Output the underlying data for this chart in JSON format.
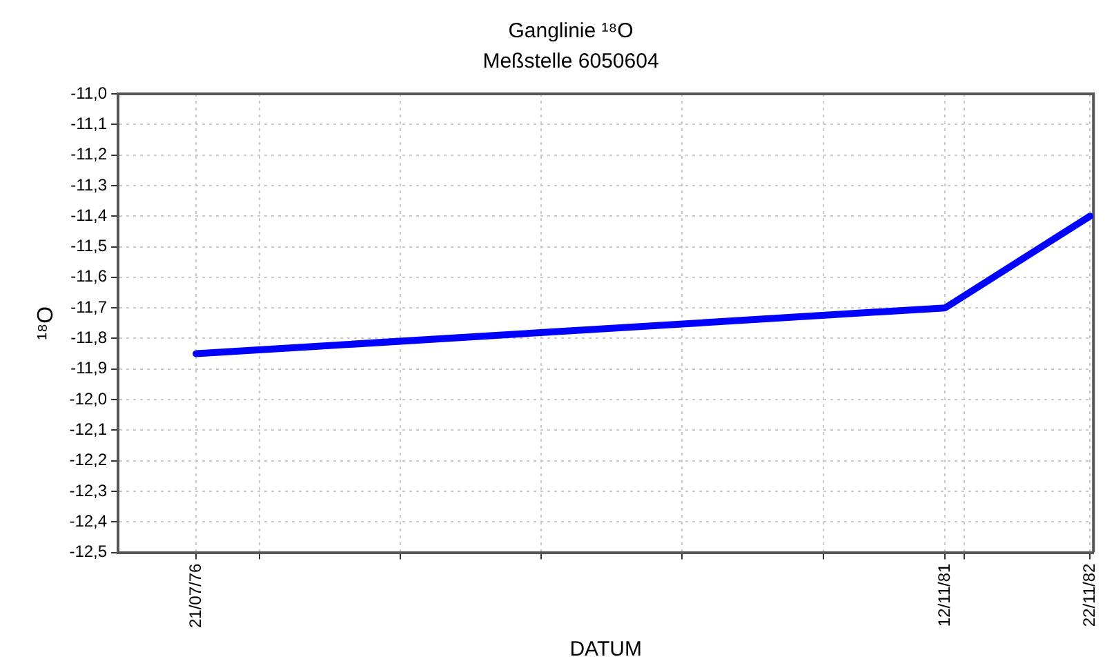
{
  "chart_data": {
    "type": "line",
    "title": "Ganglinie ¹⁸O",
    "subtitle": "Meßstelle 6050604",
    "xlabel": "DATUM",
    "ylabel": "¹⁸O",
    "x": [
      "1976-07-21",
      "1981-11-12",
      "1982-11-22"
    ],
    "series": [
      {
        "color": "#0000ff",
        "values": [
          -11.85,
          -11.7,
          -11.4
        ]
      }
    ],
    "xlim": [
      "1976-01-01",
      "1982-12-01"
    ],
    "xticks": [
      {
        "value": "1976-07-21",
        "label": "21/07/76"
      },
      {
        "value": "1977-01-01",
        "label": null
      },
      {
        "value": "1978-01-01",
        "label": null
      },
      {
        "value": "1979-01-01",
        "label": null
      },
      {
        "value": "1980-01-01",
        "label": null
      },
      {
        "value": "1981-01-01",
        "label": null
      },
      {
        "value": "1981-11-12",
        "label": "12/11/81"
      },
      {
        "value": "1982-01-01",
        "label": null
      },
      {
        "value": "1982-11-22",
        "label": "22/11/82"
      }
    ],
    "ylim": [
      -12.5,
      -11.0
    ],
    "yticks": [
      {
        "value": -12.5,
        "label": "-12,5"
      },
      {
        "value": -12.4,
        "label": "-12,4"
      },
      {
        "value": -12.3,
        "label": "-12,3"
      },
      {
        "value": -12.2,
        "label": "-12,2"
      },
      {
        "value": -12.1,
        "label": "-12,1"
      },
      {
        "value": -12.0,
        "label": "-12,0"
      },
      {
        "value": -11.9,
        "label": "-11,9"
      },
      {
        "value": -11.8,
        "label": "-11,8"
      },
      {
        "value": -11.7,
        "label": "-11,7"
      },
      {
        "value": -11.6,
        "label": "-11,6"
      },
      {
        "value": -11.5,
        "label": "-11,5"
      },
      {
        "value": -11.4,
        "label": "-11,4"
      },
      {
        "value": -11.3,
        "label": "-11,3"
      },
      {
        "value": -11.2,
        "label": "-11,2"
      },
      {
        "value": -11.1,
        "label": "-11,1"
      },
      {
        "value": -11.0,
        "label": "-11,0"
      }
    ],
    "grid": true,
    "legend": false,
    "marker": "none",
    "line_style": "solid"
  }
}
